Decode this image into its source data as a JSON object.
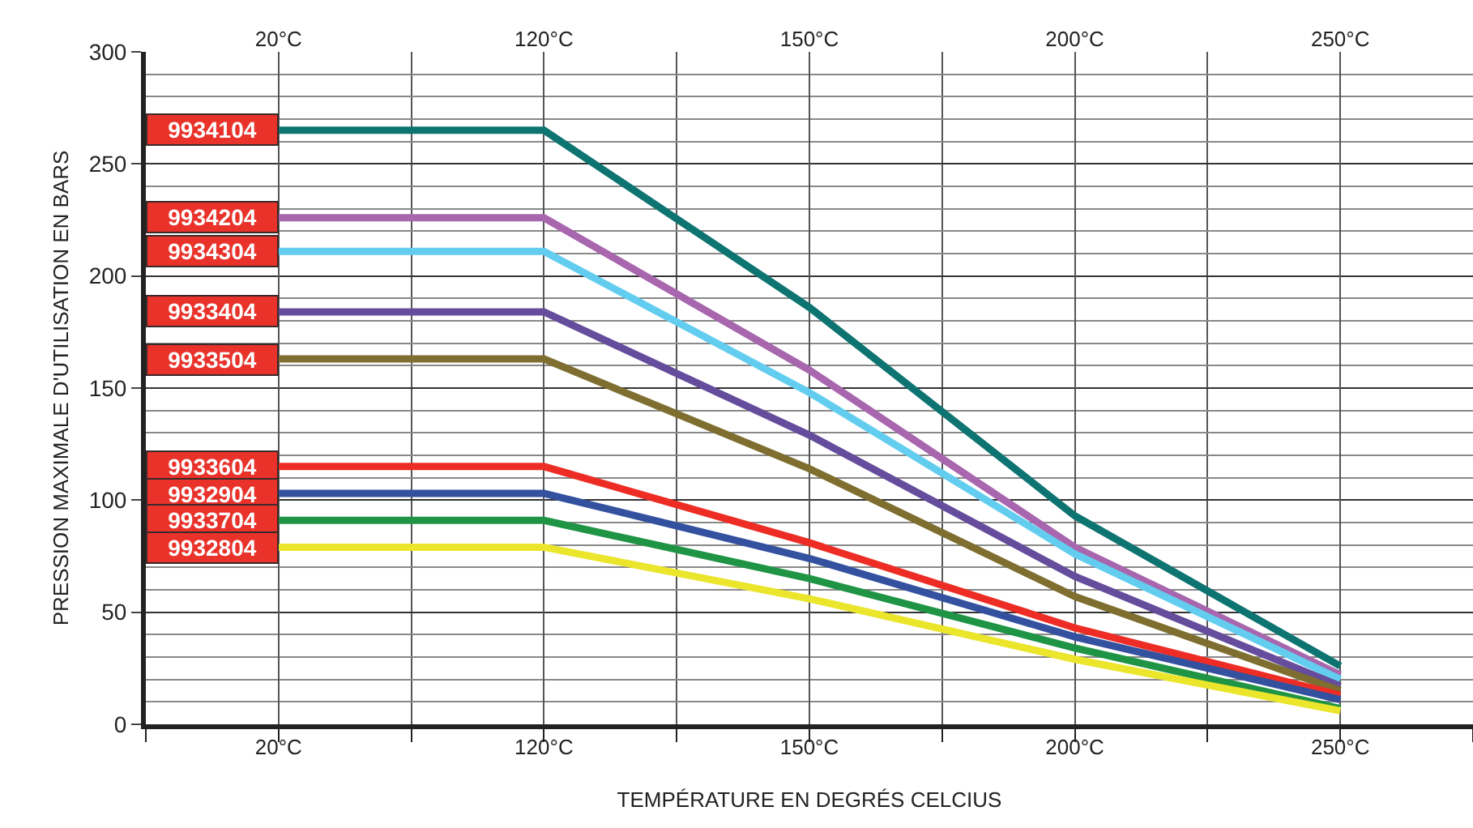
{
  "chart_data": {
    "type": "line",
    "xlabel": "TEMPÉRATURE EN DEGRÉS CELCIUS",
    "ylabel": "PRESSION MAXIMALE D'UTILISATION EN BARS",
    "categories": [
      "20°C",
      "120°C",
      "150°C",
      "200°C",
      "250°C"
    ],
    "ylim": [
      0,
      300
    ],
    "yticks": [
      0,
      50,
      100,
      150,
      200,
      250,
      300
    ],
    "grid": true,
    "legend": "left",
    "marker": "none",
    "line_style": "solid",
    "series": [
      {
        "name": "9934104",
        "color": "#0e7472",
        "values": [
          265,
          265,
          186,
          93,
          26
        ]
      },
      {
        "name": "9934204",
        "color": "#a866ae",
        "values": [
          226,
          226,
          158,
          79,
          22
        ]
      },
      {
        "name": "9934304",
        "color": "#63cdf0",
        "values": [
          211,
          211,
          148,
          76,
          20
        ]
      },
      {
        "name": "9933404",
        "color": "#654c9c",
        "values": [
          184,
          184,
          129,
          66,
          17
        ]
      },
      {
        "name": "9933504",
        "color": "#7e6e2f",
        "values": [
          163,
          163,
          114,
          57,
          15
        ]
      },
      {
        "name": "9933604",
        "color": "#ed2d25",
        "values": [
          115,
          115,
          81,
          43,
          13
        ]
      },
      {
        "name": "9932904",
        "color": "#34519f",
        "values": [
          103,
          103,
          74,
          39,
          11
        ]
      },
      {
        "name": "9933704",
        "color": "#1f9445",
        "values": [
          91,
          91,
          65,
          34,
          7
        ]
      },
      {
        "name": "9932804",
        "color": "#ebe52c",
        "values": [
          79,
          79,
          56,
          29,
          6
        ]
      }
    ]
  }
}
